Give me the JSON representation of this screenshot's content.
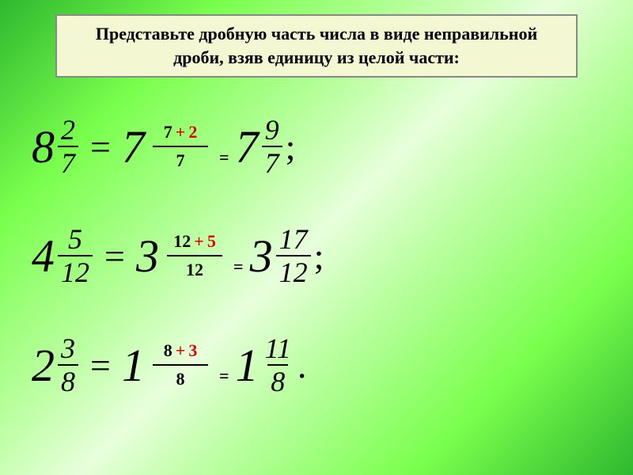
{
  "header": {
    "line1": "Представьте дробную часть числа в виде неправильной",
    "line2": "дроби, взяв единицу из целой части:"
  },
  "rows": [
    {
      "left": {
        "whole": "8",
        "num": "2",
        "den": "7"
      },
      "mid": {
        "whole": "7",
        "expl_a": "7",
        "expl_op": "+",
        "expl_b": "2",
        "expl_den": "7"
      },
      "right": {
        "whole": "7",
        "num": "9",
        "den": "7"
      },
      "punct": ";"
    },
    {
      "left": {
        "whole": "4",
        "num": "5",
        "den": "12"
      },
      "mid": {
        "whole": "3",
        "expl_a": "12",
        "expl_op": "+",
        "expl_b": "5",
        "expl_den": "12"
      },
      "right": {
        "whole": "3",
        "num": "17",
        "den": "12"
      },
      "punct": ";"
    },
    {
      "left": {
        "whole": "2",
        "num": "3",
        "den": "8"
      },
      "mid": {
        "whole": "1",
        "expl_a": "8",
        "expl_op": "+",
        "expl_b": "3",
        "expl_den": "8"
      },
      "right": {
        "whole": "1",
        "num": "11",
        "den": "8"
      },
      "punct": "."
    }
  ],
  "colors": {
    "header_bg": "#f4f8d2",
    "header_border": "#888888",
    "red": "#e30000",
    "text": "#000000"
  }
}
